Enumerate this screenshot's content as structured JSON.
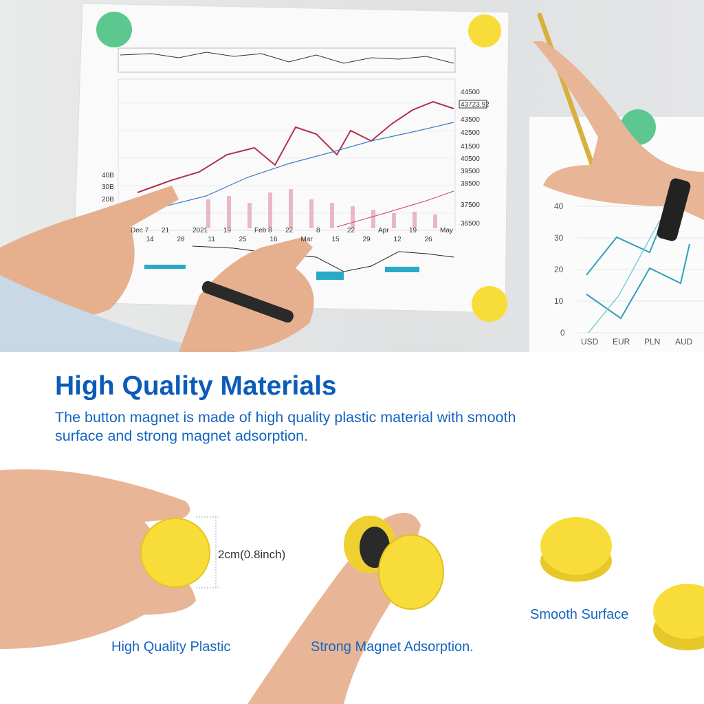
{
  "photo": {
    "paper_chart": {
      "price_label": "43723.92",
      "x_ticks": [
        "Dec 7",
        "14",
        "21",
        "28",
        "2021",
        "11",
        "19",
        "25",
        "Feb 8",
        "16",
        "22",
        "Mar",
        "8",
        "15",
        "22",
        "29",
        "Apr",
        "12",
        "19",
        "26",
        "May"
      ],
      "y_ticks": [
        "44500",
        "43500",
        "42500",
        "41500",
        "40500",
        "39500",
        "38500",
        "37500",
        "36500"
      ],
      "volume_ticks": [
        "40B",
        "30B",
        "20B"
      ]
    },
    "side_chart": {
      "y_ticks": [
        "40",
        "30",
        "20",
        "10",
        "0"
      ],
      "x_ticks": [
        "USD",
        "EUR",
        "PLN",
        "AUD"
      ]
    }
  },
  "heading": "High Quality Materials",
  "description": "The button magnet is made of high quality plastic material with smooth surface and strong magnet adsorption.",
  "dimension_label": "2cm(0.8inch)",
  "captions": {
    "plastic": "High Quality Plastic",
    "magnet": "Strong Magnet Adsorption.",
    "surface": "Smooth Surface"
  },
  "colors": {
    "heading": "#0b5cb8",
    "magnet_yellow": "#f8dd3a",
    "magnet_green": "#5cc890"
  }
}
